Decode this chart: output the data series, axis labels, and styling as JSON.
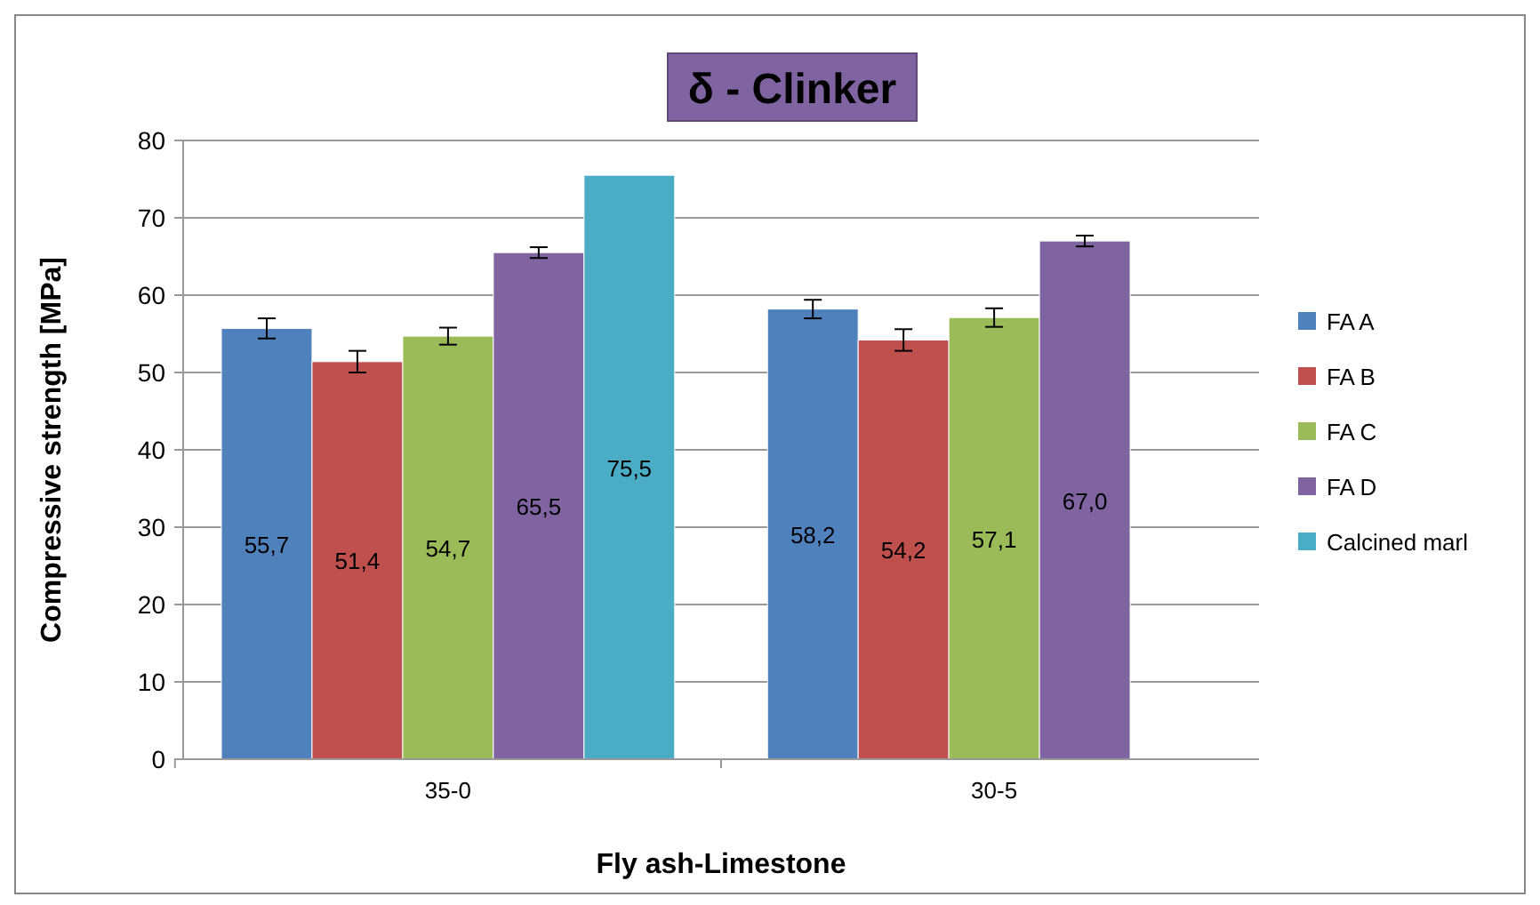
{
  "chart_data": {
    "type": "bar",
    "title": "δ - Clinker",
    "xlabel": "Fly ash-Limestone",
    "ylabel": "Compressive strength [MPa]",
    "categories": [
      "35-0",
      "30-5"
    ],
    "series": [
      {
        "name": "FA A",
        "color": "#4f81bd",
        "values": [
          55.7,
          58.2
        ],
        "errors": [
          1.3,
          1.2
        ]
      },
      {
        "name": "FA B",
        "color": "#c0504d",
        "values": [
          51.4,
          54.2
        ],
        "errors": [
          1.4,
          1.4
        ]
      },
      {
        "name": "FA C",
        "color": "#9bbb59",
        "values": [
          54.7,
          57.1
        ],
        "errors": [
          1.1,
          1.2
        ]
      },
      {
        "name": "FA D",
        "color": "#8064a2",
        "values": [
          65.5,
          67.0
        ],
        "errors": [
          0.7,
          0.7
        ]
      },
      {
        "name": "Calcined marl",
        "color": "#4bacc6",
        "values": [
          75.5,
          null
        ]
      }
    ],
    "value_labels": [
      [
        "55,7",
        "58,2"
      ],
      [
        "51,4",
        "54,2"
      ],
      [
        "54,7",
        "57,1"
      ],
      [
        "65,5",
        "67,0"
      ],
      [
        "75,5",
        null
      ]
    ],
    "ylim": [
      0,
      80
    ],
    "yticks": [
      0,
      10,
      20,
      30,
      40,
      50,
      60,
      70,
      80
    ],
    "grid": "y",
    "legend": "right"
  }
}
